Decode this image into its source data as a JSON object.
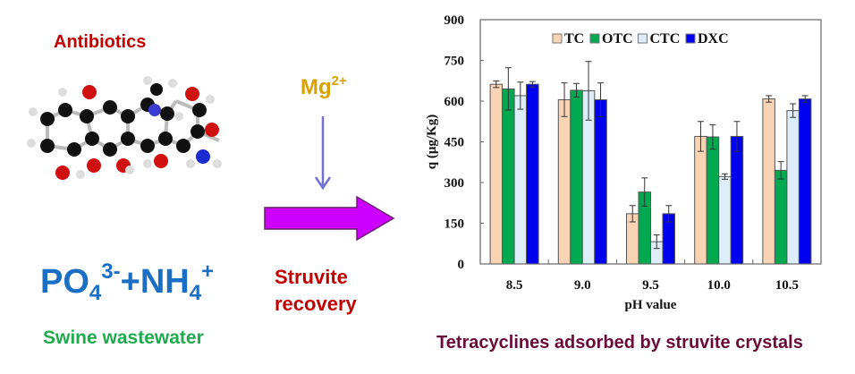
{
  "left_panel": {
    "title": "Antibiotics",
    "formula": {
      "po4": "PO",
      "po4_sub": "4",
      "po4_sup": "3-",
      "plus": "+",
      "nh4": "NH",
      "nh4_sub": "4",
      "nh4_sup": "+"
    },
    "source": "Swine wastewater",
    "molecule_icon": "tetracycline-molecule-icon"
  },
  "middle_panel": {
    "reagent": "Mg",
    "reagent_sup": "2+",
    "process_line1": "Struvite",
    "process_line2": "recovery",
    "arrow_color": "#cc00ff",
    "reagent_arrow_color": "#6f6fd6"
  },
  "caption": "Tetracyclines adsorbed by struvite crystals",
  "chart_data": {
    "type": "bar",
    "title": "",
    "xlabel": "pH value",
    "ylabel": "q (μg/Kg)",
    "ylim": [
      0,
      900
    ],
    "yticks": [
      "0",
      "150",
      "300",
      "450",
      "600",
      "750",
      "900"
    ],
    "categories": [
      "8.5",
      "9.0",
      "9.5",
      "10.0",
      "10.5"
    ],
    "legend_position": "top-center",
    "grid": false,
    "series": [
      {
        "name": "TC",
        "color": "#f9d4b4",
        "values": [
          662,
          605,
          185,
          470,
          608
        ],
        "errors": [
          12,
          62,
          30,
          55,
          12
        ]
      },
      {
        "name": "OTC",
        "color": "#00a84f",
        "values": [
          645,
          640,
          265,
          468,
          345
        ],
        "errors": [
          78,
          25,
          52,
          45,
          32
        ]
      },
      {
        "name": "CTC",
        "color": "#ddeef8",
        "values": [
          620,
          638,
          82,
          322,
          565
        ],
        "errors": [
          50,
          108,
          25,
          10,
          25
        ]
      },
      {
        "name": "DXC",
        "color": "#0000f0",
        "values": [
          662,
          605,
          185,
          470,
          608
        ],
        "errors": [
          10,
          62,
          30,
          55,
          12
        ]
      }
    ]
  }
}
